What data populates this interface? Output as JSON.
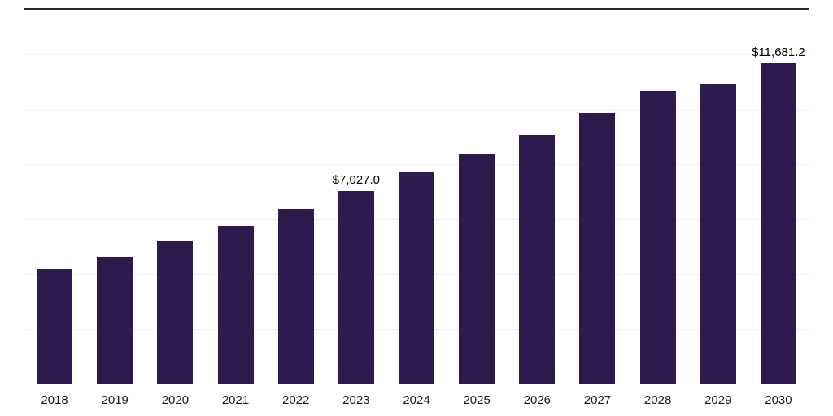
{
  "chart_data": {
    "type": "bar",
    "title": "",
    "xlabel": "",
    "ylabel": "",
    "categories": [
      "2018",
      "2019",
      "2020",
      "2021",
      "2022",
      "2023",
      "2024",
      "2025",
      "2026",
      "2027",
      "2028",
      "2029",
      "2030"
    ],
    "values": [
      4180.0,
      4625.0,
      5190.0,
      5755.0,
      6375.0,
      7027.0,
      7705.0,
      8390.0,
      9070.0,
      9875.0,
      10675.0,
      10940.0,
      11681.2
    ],
    "annotations": [
      {
        "category": "2023",
        "text": "$7,027.0"
      },
      {
        "category": "2030",
        "text": "$11,681.2"
      }
    ],
    "bar_color": "#2d1b4e",
    "ylim": [
      0,
      14000
    ],
    "gridline_values": [
      2000,
      4000,
      6000,
      8000,
      10000,
      12000
    ],
    "grid": true,
    "legend": "none"
  }
}
